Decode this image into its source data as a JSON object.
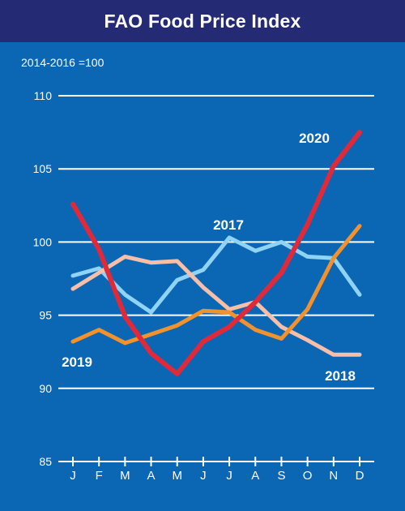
{
  "colors": {
    "header_bg": "#252a75",
    "panel_bg": "#0b66b4",
    "text": "#ffffff",
    "gridline": "#ffffff"
  },
  "chart_data": {
    "type": "line",
    "title": "FAO Food Price Index",
    "subtitle": "2014-2016 =100",
    "xlabel": "",
    "ylabel": "",
    "categories": [
      "J",
      "F",
      "M",
      "A",
      "M",
      "J",
      "J",
      "A",
      "S",
      "O",
      "N",
      "D"
    ],
    "yticks": [
      85,
      90,
      95,
      100,
      105,
      110
    ],
    "ylim": [
      85,
      110
    ],
    "grid": true,
    "legend": "none",
    "series": [
      {
        "name": "2017",
        "color": "#8fd3f5",
        "values": [
          97.7,
          98.2,
          96.4,
          95.2,
          97.4,
          98.1,
          100.3,
          99.4,
          100.0,
          99.0,
          98.9,
          96.4
        ]
      },
      {
        "name": "2018",
        "color": "#f7bfa8",
        "values": [
          96.8,
          97.9,
          99.0,
          98.6,
          98.7,
          96.9,
          95.4,
          95.9,
          94.2,
          93.3,
          92.3,
          92.3
        ]
      },
      {
        "name": "2019",
        "color": "#f1922c",
        "values": [
          93.2,
          94.0,
          93.1,
          93.7,
          94.3,
          95.3,
          95.2,
          94.0,
          93.4,
          95.4,
          98.9,
          101.1
        ]
      },
      {
        "name": "2020",
        "color": "#e02a3a",
        "values": [
          102.6,
          99.5,
          94.9,
          92.4,
          91.0,
          93.2,
          94.2,
          95.9,
          97.9,
          101.2,
          105.2,
          107.5
        ]
      }
    ]
  }
}
